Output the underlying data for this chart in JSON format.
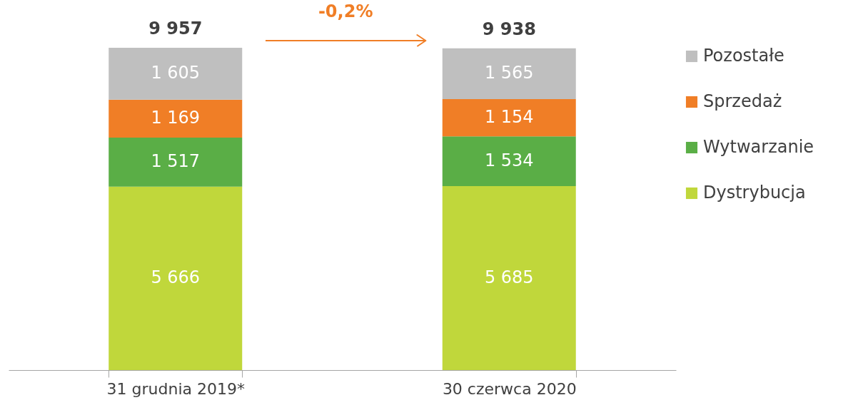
{
  "chart_data": {
    "type": "bar",
    "stacked": true,
    "categories": [
      "31 grudnia 2019*",
      "30 czerwca 2020"
    ],
    "series": [
      {
        "name": "Dystrybucja",
        "color": "#c0d73b",
        "values": [
          5666,
          5685
        ],
        "value_labels": [
          "5 666",
          "5 685"
        ]
      },
      {
        "name": "Wytwarzanie",
        "color": "#5aae46",
        "values": [
          1517,
          1534
        ],
        "value_labels": [
          "1 517",
          "1 534"
        ]
      },
      {
        "name": "Sprzedaż",
        "color": "#f07e26",
        "values": [
          1169,
          1154
        ],
        "value_labels": [
          "1 169",
          "1 154"
        ]
      },
      {
        "name": "Pozostałe",
        "color": "#bfbfbf",
        "values": [
          1605,
          1565
        ],
        "value_labels": [
          "1 605",
          "1 565"
        ]
      }
    ],
    "totals": [
      "9 957",
      "9 938"
    ],
    "annotations": [
      "-0,2%"
    ],
    "legend": "right"
  }
}
